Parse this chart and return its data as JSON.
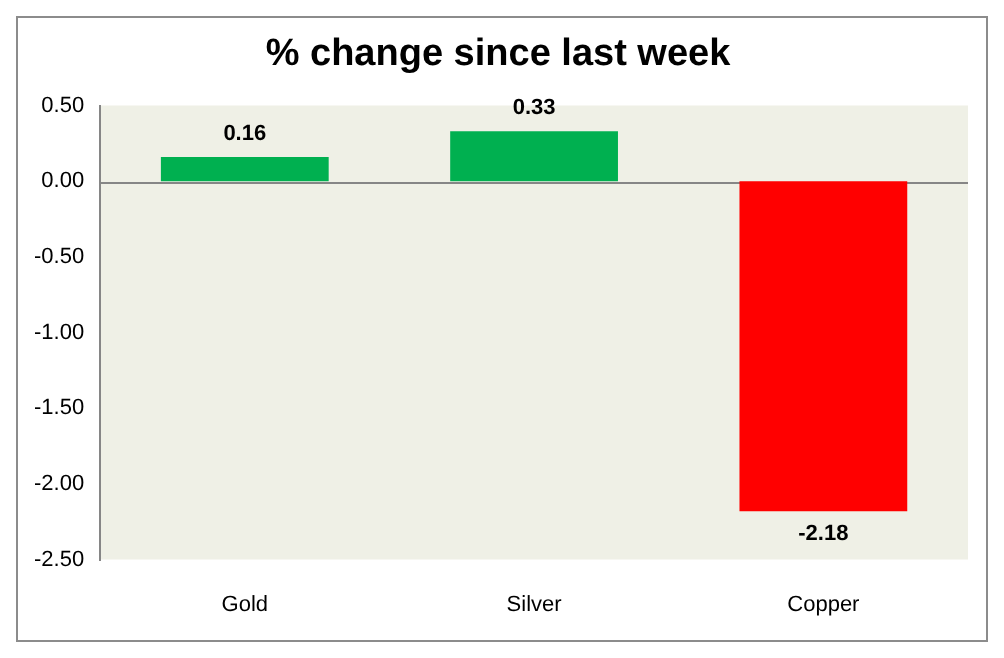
{
  "chart_data": {
    "type": "bar",
    "title": "% change since last week",
    "categories": [
      "Gold",
      "Silver",
      "Copper"
    ],
    "values": [
      0.16,
      0.33,
      -2.18
    ],
    "colors": [
      "#00b050",
      "#00b050",
      "#ff0000"
    ],
    "ylim": [
      -2.5,
      0.5
    ],
    "yticks": [
      {
        "value": 0.5,
        "label": "0.50"
      },
      {
        "value": 0,
        "label": "0.00"
      },
      {
        "value": -0.5,
        "label": "-0.50"
      },
      {
        "value": -1,
        "label": "-1.00"
      },
      {
        "value": -1.5,
        "label": "-1.50"
      },
      {
        "value": -2,
        "label": "-2.00"
      },
      {
        "value": -2.5,
        "label": "-2.50"
      }
    ],
    "data_labels": true
  }
}
